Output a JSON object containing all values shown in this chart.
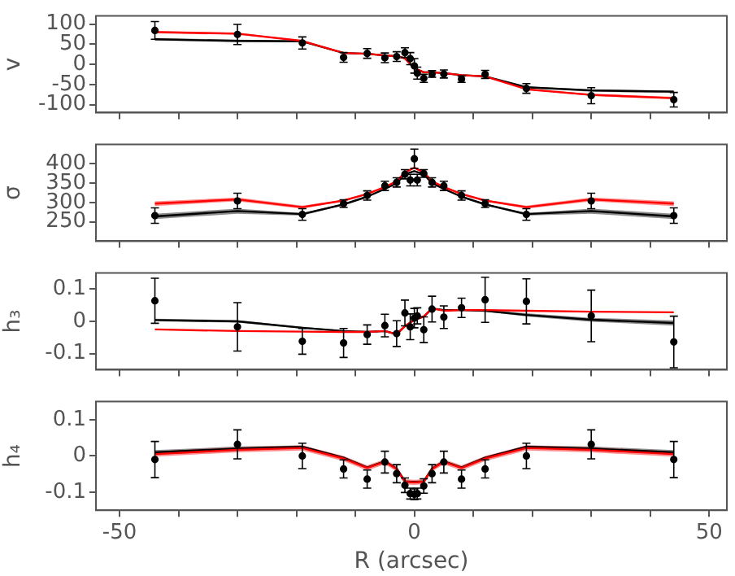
{
  "chart_data": [
    {
      "type": "scatter",
      "ylabel": "v",
      "xlim": [
        -54,
        53
      ],
      "xticks": [
        {
          "value": -50,
          "label": null
        },
        {
          "value": -40,
          "label": null
        },
        {
          "value": -30,
          "label": null
        },
        {
          "value": -20,
          "label": null
        },
        {
          "value": -10,
          "label": null
        },
        {
          "value": 0,
          "label": null
        },
        {
          "value": 10,
          "label": null
        },
        {
          "value": 20,
          "label": null
        },
        {
          "value": 30,
          "label": null
        },
        {
          "value": 40,
          "label": null
        },
        {
          "value": 50,
          "label": null
        }
      ],
      "ylim": [
        -120,
        120
      ],
      "yticks": [
        -100,
        -50,
        0,
        50,
        100
      ],
      "tick_labels": "y",
      "grid": false,
      "legend": false,
      "series": [
        {
          "type": "line",
          "marker": "none",
          "color": "#000000",
          "x": [
            -44,
            -30,
            -19,
            -12,
            -8,
            -5,
            -3,
            -1.6,
            0,
            1.6,
            3,
            5,
            8,
            12,
            19,
            30,
            44
          ],
          "values": [
            62,
            58,
            57,
            28,
            26,
            22,
            20,
            15,
            -10,
            -20,
            -20,
            -22,
            -27,
            -30,
            -57,
            -65,
            -68
          ],
          "lower": [
            59,
            55,
            55,
            27,
            25,
            21,
            19,
            14,
            -11,
            -21,
            -21,
            -23,
            -28,
            -31,
            -59,
            -68,
            -71
          ],
          "upper": [
            65,
            61,
            59,
            29,
            27,
            23,
            21,
            16,
            -9,
            -19,
            -19,
            -21,
            -26,
            -29,
            -55,
            -62,
            -65
          ]
        },
        {
          "type": "line",
          "marker": "none",
          "color": "#ff0000",
          "x": [
            -44,
            -30,
            -19,
            -12,
            -8,
            -5,
            -3,
            -1.6,
            0,
            1.6,
            3,
            5,
            8,
            12,
            19,
            30,
            44
          ],
          "values": [
            80,
            76,
            58,
            28,
            26,
            22,
            20,
            15,
            -10,
            -20,
            -20,
            -22,
            -27,
            -30,
            -62,
            -76,
            -84
          ],
          "lower": [
            77,
            73,
            57,
            27,
            25,
            21,
            19,
            14,
            -11,
            -21,
            -21,
            -23,
            -28,
            -31,
            -63,
            -79,
            -87
          ],
          "upper": [
            83,
            79,
            59,
            29,
            27,
            23,
            21,
            16,
            -9,
            -19,
            -19,
            -21,
            -26,
            -29,
            -61,
            -73,
            -81
          ]
        },
        {
          "type": "scatter",
          "marker": "circle",
          "color": "#000000",
          "x": [
            -44,
            -30,
            -19,
            -12,
            -8,
            -5,
            -3,
            -1.6,
            -0.7,
            0,
            0.5,
            1.6,
            3,
            5,
            8,
            12,
            19,
            30,
            44
          ],
          "values": [
            84,
            74,
            53,
            17,
            27,
            16,
            19,
            29,
            14,
            -4,
            -22,
            -35,
            -24,
            -24,
            -37,
            -25,
            -60,
            -78,
            -88
          ],
          "errors": [
            22,
            25,
            15,
            12,
            12,
            12,
            12,
            12,
            15,
            18,
            15,
            10,
            8,
            10,
            8,
            10,
            12,
            20,
            18
          ]
        }
      ]
    },
    {
      "type": "scatter",
      "ylabel": "σ",
      "xlim": [
        -54,
        53
      ],
      "xticks": [
        {
          "value": -50,
          "label": null
        },
        {
          "value": -40,
          "label": null
        },
        {
          "value": -30,
          "label": null
        },
        {
          "value": -20,
          "label": null
        },
        {
          "value": -10,
          "label": null
        },
        {
          "value": 0,
          "label": null
        },
        {
          "value": 10,
          "label": null
        },
        {
          "value": 20,
          "label": null
        },
        {
          "value": 30,
          "label": null
        },
        {
          "value": 40,
          "label": null
        },
        {
          "value": 50,
          "label": null
        }
      ],
      "ylim": [
        200,
        450
      ],
      "yticks": [
        250,
        300,
        350,
        400
      ],
      "tick_labels": "y",
      "grid": false,
      "legend": false,
      "series": [
        {
          "type": "line",
          "color": "#000000",
          "x": [
            -44,
            -30,
            -19,
            -12,
            -8,
            -5,
            -3,
            -1.6,
            0,
            1.6,
            3,
            5,
            8,
            12,
            19,
            30,
            44
          ],
          "values": [
            264,
            278,
            270,
            295,
            315,
            335,
            350,
            373,
            381,
            373,
            350,
            335,
            315,
            295,
            270,
            278,
            264
          ],
          "lower": [
            257,
            271,
            266,
            293,
            313,
            333,
            348,
            371,
            379,
            371,
            348,
            333,
            313,
            293,
            266,
            271,
            257
          ],
          "upper": [
            271,
            284,
            273,
            297,
            317,
            337,
            352,
            375,
            383,
            375,
            352,
            337,
            317,
            297,
            273,
            284,
            271
          ]
        },
        {
          "type": "line",
          "marker": "none",
          "color": "#ff0000",
          "x": [
            -44,
            -30,
            -19,
            -12,
            -8,
            -5,
            -3,
            -1.6,
            0,
            1.6,
            3,
            5,
            8,
            12,
            19,
            30,
            44
          ],
          "values": [
            297,
            308,
            288,
            305,
            322,
            340,
            355,
            378,
            390,
            378,
            355,
            340,
            322,
            305,
            288,
            308,
            297
          ],
          "lower": [
            291,
            303,
            284,
            303,
            320,
            338,
            353,
            376,
            388,
            376,
            353,
            338,
            320,
            303,
            284,
            303,
            291
          ],
          "upper": [
            303,
            313,
            292,
            307,
            324,
            342,
            357,
            380,
            392,
            380,
            357,
            342,
            324,
            307,
            292,
            313,
            303
          ]
        },
        {
          "type": "scatter",
          "marker": "circle",
          "color": "#000000",
          "x": [
            -44,
            -30,
            -19,
            -12,
            -8,
            -5,
            -3,
            -1.6,
            -0.7,
            0,
            0.5,
            1.6,
            3,
            5,
            8,
            12,
            19,
            30,
            44
          ],
          "values": [
            266,
            304,
            269,
            297,
            318,
            343,
            352,
            373,
            358,
            413,
            358,
            375,
            352,
            343,
            318,
            297,
            269,
            304,
            266
          ],
          "errors": [
            20,
            20,
            15,
            10,
            12,
            12,
            12,
            12,
            15,
            25,
            15,
            10,
            12,
            12,
            12,
            10,
            15,
            20,
            20
          ]
        }
      ]
    },
    {
      "type": "scatter",
      "ylabel": "h₃",
      "xlim": [
        -54,
        53
      ],
      "xticks": [
        {
          "value": -50,
          "label": null
        },
        {
          "value": -40,
          "label": null
        },
        {
          "value": -30,
          "label": null
        },
        {
          "value": -20,
          "label": null
        },
        {
          "value": -10,
          "label": null
        },
        {
          "value": 0,
          "label": null
        },
        {
          "value": 10,
          "label": null
        },
        {
          "value": 20,
          "label": null
        },
        {
          "value": 30,
          "label": null
        },
        {
          "value": 40,
          "label": null
        },
        {
          "value": 50,
          "label": null
        }
      ],
      "ylim": [
        -0.15,
        0.15
      ],
      "yticks": [
        -0.1,
        0,
        0.1
      ],
      "tick_labels": "y",
      "grid": false,
      "legend": false,
      "series": [
        {
          "type": "line",
          "marker": "none",
          "color": "#000000",
          "x": [
            -44,
            -30,
            -19,
            -12,
            -8,
            -5,
            -3,
            -1.6,
            0,
            1.6,
            3,
            5,
            8,
            12,
            19,
            30,
            44
          ],
          "values": [
            0.004,
            0,
            -0.02,
            -0.03,
            -0.033,
            -0.03,
            -0.04,
            -0.015,
            0.005,
            0.015,
            0.04,
            0.035,
            0.035,
            0.033,
            0.02,
            0.005,
            -0.005
          ],
          "lower": [
            0,
            -0.004,
            -0.023,
            -0.032,
            -0.035,
            -0.032,
            -0.042,
            -0.017,
            0.003,
            0.013,
            0.038,
            0.033,
            0.033,
            0.03,
            0.015,
            -0.001,
            -0.013
          ],
          "upper": [
            0.008,
            0.004,
            -0.017,
            -0.028,
            -0.031,
            -0.028,
            -0.038,
            -0.013,
            0.007,
            0.017,
            0.042,
            0.037,
            0.037,
            0.036,
            0.025,
            0.011,
            0.003
          ]
        },
        {
          "type": "line",
          "marker": "none",
          "color": "#ff0000",
          "x": [
            -44,
            -30,
            -19,
            -12,
            -8,
            -5,
            -3,
            -1.6,
            0,
            1.6,
            3,
            5,
            8,
            12,
            19,
            30,
            44
          ],
          "values": [
            -0.025,
            -0.03,
            -0.032,
            -0.033,
            -0.033,
            -0.03,
            -0.04,
            -0.015,
            0.005,
            0.015,
            0.04,
            0.033,
            0.035,
            0.035,
            0.033,
            0.03,
            0.028
          ]
        },
        {
          "type": "scatter",
          "marker": "circle",
          "color": "#000000",
          "x": [
            -44,
            -30,
            -19,
            -12,
            -8,
            -5,
            -3,
            -1.6,
            -0.7,
            0,
            0.5,
            1.6,
            3,
            5,
            8,
            12,
            19,
            30,
            44
          ],
          "values": [
            0.064,
            -0.017,
            -0.062,
            -0.067,
            -0.041,
            -0.013,
            -0.038,
            0.026,
            -0.017,
            0.01,
            0.017,
            -0.026,
            0.038,
            0.013,
            0.042,
            0.067,
            0.062,
            0.017,
            -0.064
          ],
          "errors": [
            0.07,
            0.075,
            0.04,
            0.045,
            0.03,
            0.035,
            0.04,
            0.04,
            0.04,
            0.03,
            0.025,
            0.04,
            0.04,
            0.035,
            0.03,
            0.07,
            0.07,
            0.08,
            0.08
          ]
        }
      ]
    },
    {
      "type": "scatter",
      "ylabel": "h₄",
      "xlabel": "R (arcsec)",
      "xlim": [
        -54,
        53
      ],
      "xticks": [
        -50,
        {
          "value": -40,
          "label": null
        },
        {
          "value": -30,
          "label": null
        },
        {
          "value": -20,
          "label": null
        },
        {
          "value": -10,
          "label": null
        },
        0,
        {
          "value": 10,
          "label": null
        },
        {
          "value": 20,
          "label": null
        },
        {
          "value": 30,
          "label": null
        },
        {
          "value": 40,
          "label": null
        },
        50
      ],
      "ylim": [
        -0.15,
        0.15
      ],
      "yticks": [
        -0.1,
        0,
        0.1
      ],
      "grid": false,
      "legend": false,
      "series": [
        {
          "type": "line",
          "marker": "none",
          "color": "#000000",
          "x": [
            -44,
            -30,
            -19,
            -12,
            -8,
            -5,
            -3,
            -1.6,
            0,
            1.6,
            3,
            5,
            8,
            12,
            19,
            30,
            44
          ],
          "values": [
            0.01,
            0.02,
            0.025,
            -0.005,
            -0.032,
            -0.015,
            -0.035,
            -0.07,
            -0.072,
            -0.07,
            -0.035,
            -0.015,
            -0.032,
            -0.005,
            0.025,
            0.02,
            0.01
          ],
          "lower": [
            0.003,
            0.014,
            0.021,
            -0.008,
            -0.034,
            -0.017,
            -0.037,
            -0.072,
            -0.074,
            -0.072,
            -0.037,
            -0.017,
            -0.034,
            -0.008,
            0.021,
            0.014,
            0.003
          ],
          "upper": [
            0.016,
            0.026,
            0.029,
            -0.002,
            -0.03,
            -0.013,
            -0.033,
            -0.068,
            -0.07,
            -0.068,
            -0.033,
            -0.013,
            -0.03,
            -0.002,
            0.029,
            0.026,
            0.016
          ]
        },
        {
          "type": "line",
          "marker": "none",
          "color": "#ff0000",
          "x": [
            -44,
            -30,
            -19,
            -12,
            -8,
            -5,
            -3,
            -1.6,
            0,
            1.6,
            3,
            5,
            8,
            12,
            19,
            30,
            44
          ],
          "values": [
            0.005,
            0.017,
            0.022,
            -0.007,
            -0.033,
            -0.016,
            -0.036,
            -0.071,
            -0.073,
            -0.071,
            -0.036,
            -0.016,
            -0.033,
            -0.007,
            0.022,
            0.017,
            0.005
          ],
          "lower": [
            -0.002,
            0.01,
            0.015,
            -0.014,
            -0.04,
            -0.023,
            -0.043,
            -0.078,
            -0.08,
            -0.078,
            -0.043,
            -0.023,
            -0.04,
            -0.014,
            0.015,
            0.01,
            -0.002
          ],
          "upper": [
            0.012,
            0.024,
            0.029,
            0,
            -0.026,
            -0.009,
            -0.029,
            -0.064,
            -0.066,
            -0.064,
            -0.029,
            -0.009,
            -0.026,
            0,
            0.029,
            0.024,
            0.012
          ]
        },
        {
          "type": "scatter",
          "marker": "circle",
          "color": "#000000",
          "x": [
            -44,
            -30,
            -19,
            -12,
            -8,
            -5,
            -3,
            -1.6,
            -0.7,
            0,
            0.5,
            1.6,
            3,
            5,
            8,
            12,
            19,
            30,
            44
          ],
          "values": [
            -0.01,
            0.032,
            0,
            -0.036,
            -0.064,
            -0.017,
            -0.049,
            -0.081,
            -0.104,
            -0.106,
            -0.104,
            -0.083,
            -0.049,
            -0.017,
            -0.064,
            -0.036,
            0,
            0.032,
            -0.01
          ],
          "errors": [
            0.05,
            0.04,
            0.035,
            0.025,
            0.025,
            0.03,
            0.025,
            0.02,
            0.015,
            0.015,
            0.015,
            0.02,
            0.025,
            0.03,
            0.025,
            0.025,
            0.035,
            0.04,
            0.05
          ]
        }
      ]
    }
  ]
}
